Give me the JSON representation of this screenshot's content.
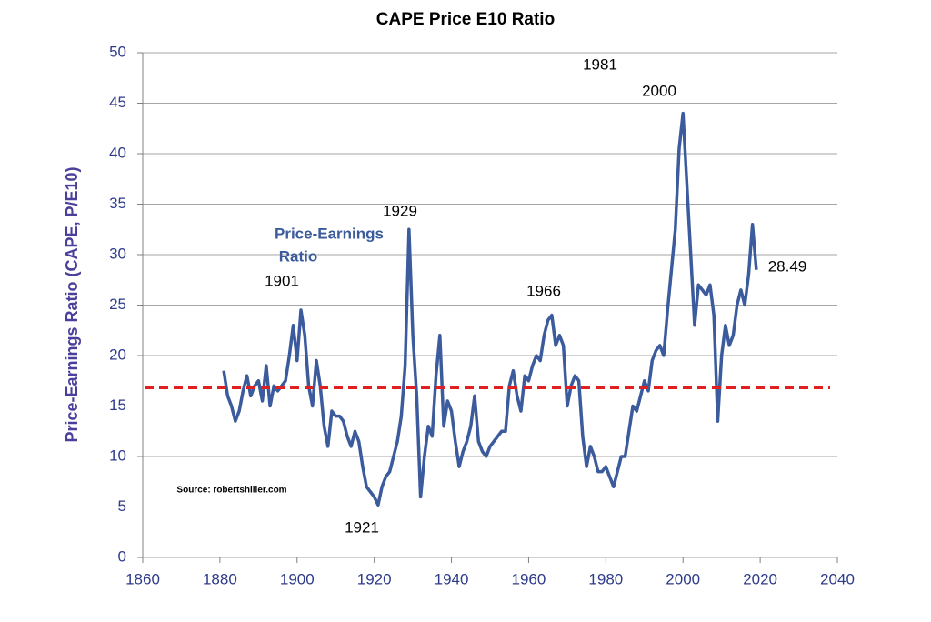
{
  "chart_data": {
    "type": "line",
    "title": "CAPE Price E10 Ratio",
    "y_label": "Price-Earnings Ratio (CAPE, P/E10)",
    "x": [
      1881,
      1882,
      1883,
      1884,
      1885,
      1886,
      1887,
      1888,
      1889,
      1890,
      1891,
      1892,
      1893,
      1894,
      1895,
      1896,
      1897,
      1898,
      1899,
      1900,
      1901,
      1902,
      1903,
      1904,
      1905,
      1906,
      1907,
      1908,
      1909,
      1910,
      1911,
      1912,
      1913,
      1914,
      1915,
      1916,
      1917,
      1918,
      1919,
      1920,
      1921,
      1922,
      1923,
      1924,
      1925,
      1926,
      1927,
      1928,
      1929,
      1930,
      1931,
      1932,
      1933,
      1934,
      1935,
      1936,
      1937,
      1938,
      1939,
      1940,
      1941,
      1942,
      1943,
      1944,
      1945,
      1946,
      1947,
      1948,
      1949,
      1950,
      1951,
      1952,
      1953,
      1954,
      1955,
      1956,
      1957,
      1958,
      1959,
      1960,
      1961,
      1962,
      1963,
      1964,
      1965,
      1966,
      1967,
      1968,
      1969,
      1970,
      1971,
      1972,
      1973,
      1974,
      1975,
      1976,
      1977,
      1978,
      1979,
      1980,
      1981,
      1982,
      1983,
      1984,
      1985,
      1986,
      1987,
      1988,
      1989,
      1990,
      1991,
      1992,
      1993,
      1994,
      1995,
      1996,
      1997,
      1998,
      1999,
      2000,
      2001,
      2002,
      2003,
      2004,
      2005,
      2006,
      2007,
      2008,
      2009,
      2010,
      2011,
      2012,
      2013,
      2014,
      2015,
      2016,
      2017,
      2018,
      2019
    ],
    "series": [
      {
        "name": "Price-Earnings Ratio",
        "color": "#3b5b9d",
        "values": [
          18.5,
          16,
          15,
          13.5,
          14.5,
          16.5,
          18,
          16,
          17,
          17.5,
          15.5,
          19,
          15,
          17,
          16.5,
          17,
          17.5,
          20,
          23,
          19.5,
          24.5,
          22,
          17,
          15,
          19.5,
          17,
          13,
          11,
          14.5,
          14,
          14,
          13.5,
          12,
          11,
          12.5,
          11.5,
          9,
          7,
          6.5,
          6,
          5.2,
          7,
          8,
          8.5,
          10,
          11.5,
          14,
          19,
          32.5,
          22,
          16,
          6,
          10,
          13,
          12,
          18,
          22,
          13,
          15.5,
          14.5,
          11.5,
          9,
          10.5,
          11.5,
          13,
          16,
          11.5,
          10.5,
          10,
          11,
          11.5,
          12,
          12.5,
          12.5,
          17,
          18.5,
          16,
          14.5,
          18,
          17.5,
          19,
          20,
          19.5,
          22,
          23.5,
          24,
          21,
          22,
          21,
          15,
          17,
          18,
          17.5,
          12,
          9,
          11,
          10,
          8.5,
          8.5,
          9,
          8,
          7,
          8.5,
          10,
          10,
          12.5,
          15,
          14.5,
          16,
          17.5,
          16.5,
          19.5,
          20.5,
          21,
          20,
          24.5,
          28.5,
          32.5,
          40.5,
          44,
          37,
          30,
          23,
          27,
          26.5,
          26,
          27,
          24,
          13.5,
          20,
          23,
          21,
          22,
          25,
          26.5,
          25,
          28,
          33,
          28.49
        ]
      }
    ],
    "reference_line": {
      "value": 16.8,
      "color": "#e02020"
    },
    "annotations": [
      "1981",
      "2000",
      "1929",
      "Price-Earnings",
      "Ratio",
      "1901",
      "1966",
      "28.49",
      "1921",
      "Source: robertshiller.com"
    ],
    "xlim": [
      1860,
      2040
    ],
    "xticks": [
      1860,
      1880,
      1900,
      1920,
      1940,
      1960,
      1980,
      2000,
      2020,
      2040
    ],
    "ylim": [
      0,
      50
    ],
    "yticks": [
      0,
      5,
      10,
      15,
      20,
      25,
      30,
      35,
      40,
      45,
      50
    ],
    "grid": true
  }
}
